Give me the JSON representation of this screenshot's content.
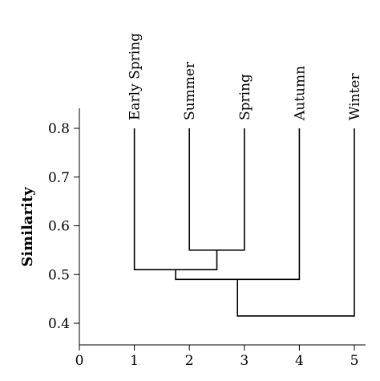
{
  "chart_data": {
    "type": "dendrogram",
    "title": "",
    "xlabel": "",
    "ylabel": "Similarity",
    "xlim": [
      0,
      5
    ],
    "ylim": [
      0.35,
      0.85
    ],
    "xticks": [
      "0",
      "1",
      "2",
      "3",
      "4",
      "5"
    ],
    "yticks": [
      "0.4",
      "0.5",
      "0.6",
      "0.7",
      "0.8"
    ],
    "leaves": [
      {
        "x": 1,
        "label": "Early Spring"
      },
      {
        "x": 2,
        "label": "Summer"
      },
      {
        "x": 3,
        "label": "Spring"
      },
      {
        "x": 4,
        "label": "Autumn"
      },
      {
        "x": 5,
        "label": "Winter"
      }
    ],
    "leaf_top": 0.8,
    "merges": [
      {
        "left_x": 2,
        "left_y": 0.8,
        "right_x": 3,
        "right_y": 0.8,
        "similarity": 0.55,
        "node_x": 2.5
      },
      {
        "left_x": 1,
        "left_y": 0.8,
        "right_x": 2.5,
        "right_y": 0.55,
        "similarity": 0.51,
        "node_x": 1.75
      },
      {
        "left_x": 1.75,
        "left_y": 0.51,
        "right_x": 4,
        "right_y": 0.8,
        "similarity": 0.49,
        "node_x": 2.875
      },
      {
        "left_x": 2.875,
        "left_y": 0.49,
        "right_x": 5,
        "right_y": 0.8,
        "similarity": 0.415,
        "node_x": 3.94
      }
    ],
    "grid": false,
    "legend": "none"
  }
}
